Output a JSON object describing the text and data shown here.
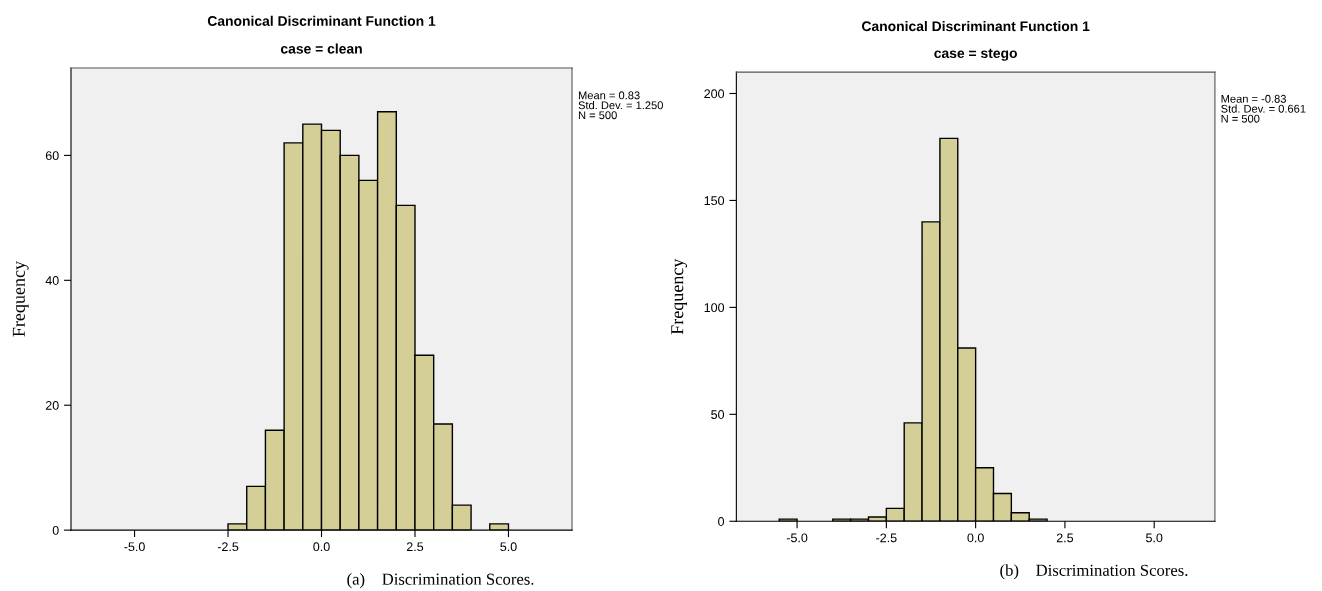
{
  "chart_data": [
    {
      "type": "histogram",
      "title": "Canonical Discriminant Function 1",
      "subtitle": "case = clean",
      "xlabel": "(a)    Discrimination Scores.",
      "ylabel": "Frequency",
      "annotations": [
        "Mean = 0.83\nStd. Dev. = 1.250\nN = 500"
      ],
      "bins": [
        -2.5,
        -2.0,
        -1.5,
        -1.0,
        -0.5,
        0.0,
        0.5,
        1.0,
        1.5,
        2.0,
        2.5,
        3.0,
        3.5,
        4.0,
        4.5,
        5.0
      ],
      "values": [
        1,
        7,
        16,
        62,
        65,
        64,
        60,
        56,
        67,
        52,
        28,
        17,
        4,
        0,
        1
      ],
      "color": "#d4cf96",
      "xlim": [
        -6.7,
        6.7
      ],
      "xticks": [
        {
          "value": -5,
          "label": "-5.0"
        },
        {
          "value": -2.5,
          "label": "-2.5"
        },
        {
          "value": 0,
          "label": "0.0"
        },
        {
          "value": 2.5,
          "label": "2.5"
        },
        {
          "value": 5,
          "label": "5.0"
        }
      ],
      "ylim": [
        0,
        74
      ],
      "yticks": [
        0,
        20,
        40,
        60
      ],
      "grid": false
    },
    {
      "type": "histogram",
      "title": "Canonical Discriminant Function 1",
      "subtitle": "case = stego",
      "xlabel": "(b)    Discrimination Scores.",
      "ylabel": "Frequency",
      "annotations": [
        "Mean = -0.83\nStd. Dev. = 0.661\nN = 500"
      ],
      "bins": [
        -5.5,
        -5.0,
        -4.5,
        -4.0,
        -3.5,
        -3.0,
        -2.5,
        -2.0,
        -1.5,
        -1.0,
        -0.5,
        0.0,
        0.5,
        1.0,
        1.5,
        2.0
      ],
      "values": [
        1,
        0,
        0,
        1,
        1,
        2,
        6,
        46,
        140,
        179,
        81,
        25,
        13,
        4,
        1
      ],
      "color": "#d4cf96",
      "xlim": [
        -6.7,
        6.7
      ],
      "xticks": [
        {
          "value": -5,
          "label": "-5.0"
        },
        {
          "value": -2.5,
          "label": "-2.5"
        },
        {
          "value": 0,
          "label": "0.0"
        },
        {
          "value": 2.5,
          "label": "2.5"
        },
        {
          "value": 5,
          "label": "5.0"
        }
      ],
      "ylim": [
        0,
        210
      ],
      "yticks": [
        0,
        50,
        100,
        150,
        200
      ],
      "grid": false
    }
  ]
}
